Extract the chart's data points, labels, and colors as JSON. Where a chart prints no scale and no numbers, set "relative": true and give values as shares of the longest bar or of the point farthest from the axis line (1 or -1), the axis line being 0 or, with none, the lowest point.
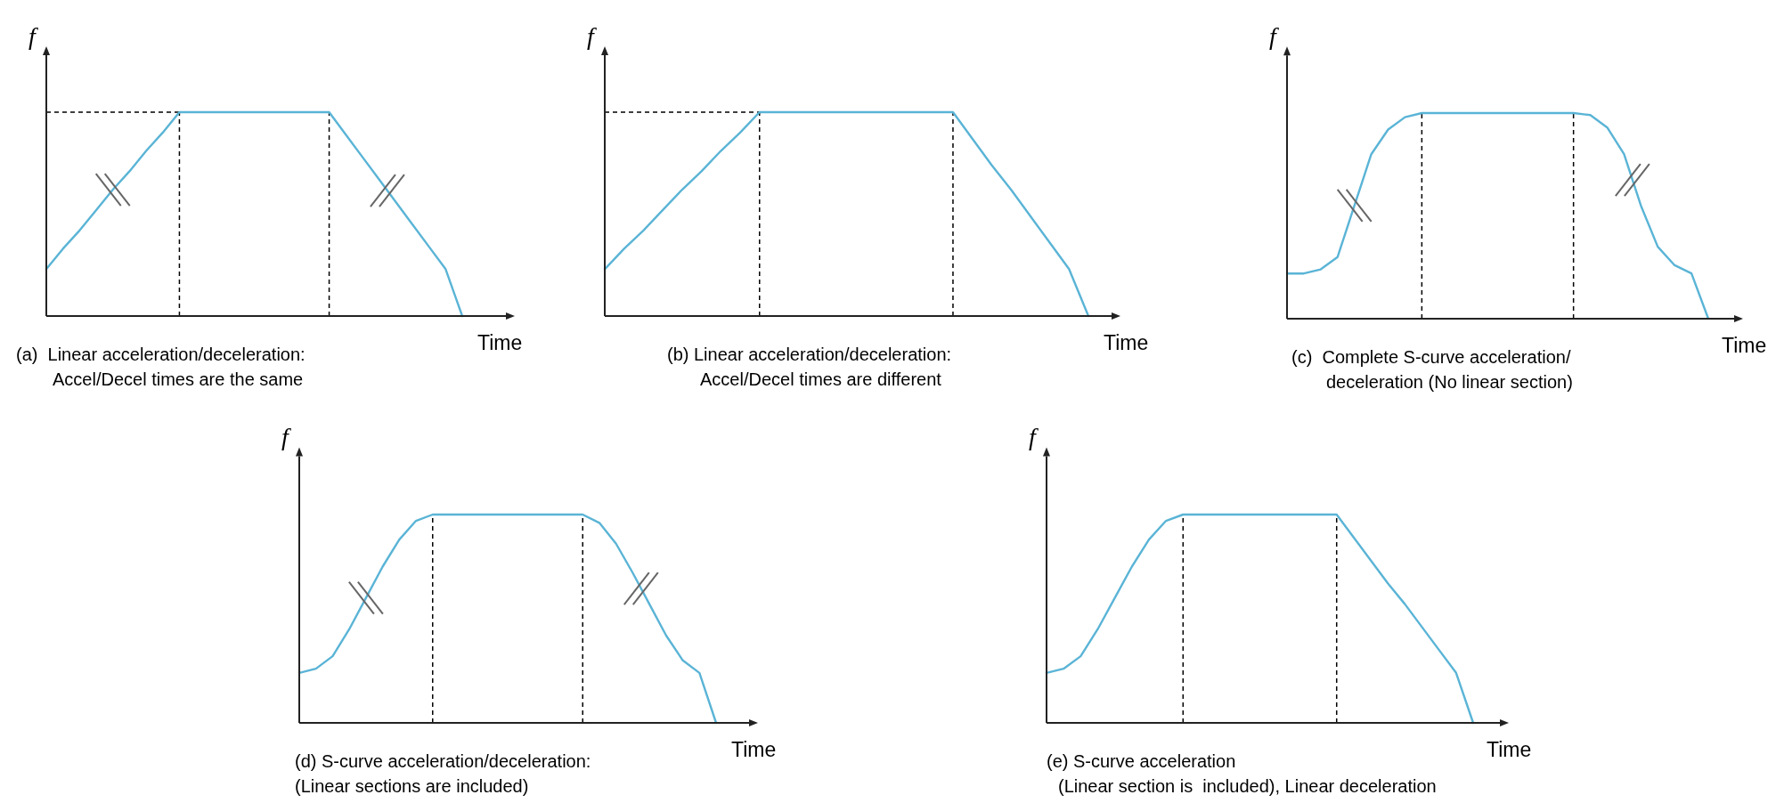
{
  "chart_data": [
    {
      "type": "line",
      "relative": true,
      "title": "(a)  Linear acceleration/deceleration:\nAccel/Decel times are the same",
      "xlabel": "Time",
      "ylabel": "f",
      "categories": [
        null,
        null,
        null,
        null,
        null,
        null,
        null,
        null,
        null,
        null,
        null,
        null,
        null,
        null,
        null,
        null,
        null,
        null,
        null,
        null,
        null,
        null,
        null,
        null,
        null,
        null
      ],
      "series": [
        {
          "color": "#5ab4d6",
          "values": [
            0.23,
            0.33,
            0.42,
            0.52,
            0.62,
            0.71,
            0.81,
            0.9,
            1,
            1,
            1,
            1,
            1,
            1,
            1,
            1,
            1,
            1,
            0.89,
            0.78,
            0.67,
            0.56,
            0.45,
            0.34,
            0.23,
            0
          ]
        }
      ],
      "ref_lines": [
        {
          "axis": "y",
          "value": 1,
          "line_style": "dashed",
          "color": "#000000"
        }
      ]
    },
    {
      "type": "line",
      "relative": true,
      "title": "(b) Linear acceleration/deceleration:\nAccel/Decel times are different",
      "xlabel": "Time",
      "ylabel": "f",
      "categories": [
        null,
        null,
        null,
        null,
        null,
        null,
        null,
        null,
        null,
        null,
        null,
        null,
        null,
        null,
        null,
        null,
        null,
        null,
        null,
        null,
        null,
        null,
        null,
        null,
        null,
        null
      ],
      "series": [
        {
          "color": "#5ab4d6",
          "values": [
            0.23,
            0.33,
            0.42,
            0.52,
            0.62,
            0.71,
            0.81,
            0.9,
            1,
            1,
            1,
            1,
            1,
            1,
            1,
            1,
            1,
            1,
            1,
            0.87,
            0.74,
            0.62,
            0.49,
            0.36,
            0.23,
            0
          ]
        }
      ],
      "ref_lines": [
        {
          "axis": "y",
          "value": 1,
          "line_style": "dashed",
          "color": "#000000"
        }
      ]
    },
    {
      "type": "line",
      "relative": true,
      "title": "(c)  Complete S-curve acceleration/\ndeceleration (No linear section)",
      "xlabel": "Time",
      "ylabel": "f",
      "categories": [
        null,
        null,
        null,
        null,
        null,
        null,
        null,
        null,
        null,
        null,
        null,
        null,
        null,
        null,
        null,
        null,
        null,
        null,
        null,
        null,
        null,
        null,
        null,
        null,
        null,
        null
      ],
      "series": [
        {
          "color": "#5ab4d6",
          "values": [
            0.22,
            0.22,
            0.24,
            0.3,
            0.55,
            0.8,
            0.92,
            0.98,
            1,
            1,
            1,
            1,
            1,
            1,
            1,
            1,
            1,
            1,
            0.99,
            0.93,
            0.8,
            0.55,
            0.35,
            0.26,
            0.22,
            0
          ]
        }
      ]
    },
    {
      "type": "line",
      "relative": true,
      "title": "(d) S-curve acceleration/deceleration:\n(Linear sections are included)",
      "xlabel": "Time",
      "ylabel": "f",
      "categories": [
        null,
        null,
        null,
        null,
        null,
        null,
        null,
        null,
        null,
        null,
        null,
        null,
        null,
        null,
        null,
        null,
        null,
        null,
        null,
        null,
        null,
        null,
        null,
        null,
        null,
        null
      ],
      "series": [
        {
          "color": "#5ab4d6",
          "values": [
            0.24,
            0.26,
            0.32,
            0.45,
            0.6,
            0.75,
            0.88,
            0.97,
            1,
            1,
            1,
            1,
            1,
            1,
            1,
            1,
            1,
            1,
            0.96,
            0.86,
            0.72,
            0.57,
            0.42,
            0.3,
            0.24,
            0
          ]
        }
      ]
    },
    {
      "type": "line",
      "relative": true,
      "title": "(e) S-curve acceleration\n(Linear section is  included), Linear deceleration",
      "xlabel": "Time",
      "ylabel": "f",
      "categories": [
        null,
        null,
        null,
        null,
        null,
        null,
        null,
        null,
        null,
        null,
        null,
        null,
        null,
        null,
        null,
        null,
        null,
        null,
        null,
        null,
        null,
        null,
        null,
        null,
        null,
        null
      ],
      "series": [
        {
          "color": "#5ab4d6",
          "values": [
            0.24,
            0.26,
            0.32,
            0.45,
            0.6,
            0.75,
            0.88,
            0.97,
            1,
            1,
            1,
            1,
            1,
            1,
            1,
            1,
            1,
            1,
            0.89,
            0.78,
            0.67,
            0.57,
            0.46,
            0.35,
            0.24,
            0
          ]
        }
      ]
    }
  ]
}
